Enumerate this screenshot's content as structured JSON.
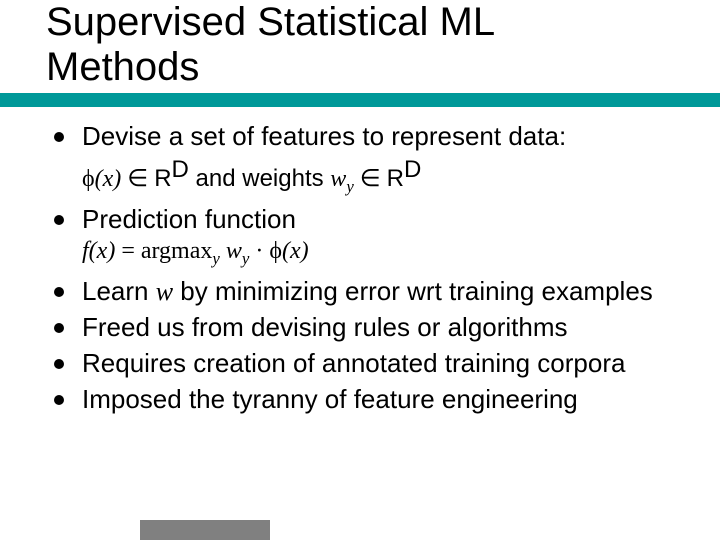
{
  "slide": {
    "title_line1": "Supervised Statistical ML",
    "title_line2": "Methods",
    "colors": {
      "accent_bar": "#009999",
      "text": "#000000",
      "footer_bar": "#808080",
      "background": "#ffffff"
    },
    "title_fontsize": 40,
    "body_fontsize": 26,
    "sub_fontsize": 24,
    "bullets": [
      {
        "text": "Devise a set of features to represent data:",
        "sub": {
          "phi": "ϕ",
          "x": "(x)",
          "in": " ∈ ",
          "R": "R",
          "D": "D",
          "mid": " and weights ",
          "w": "w",
          "y": "y",
          "in2": " ∈ ",
          "R2": "R",
          "D2": "D"
        }
      },
      {
        "text": "Prediction function",
        "sub": {
          "fx": "f(x)",
          "eq": " = argmax",
          "y": "y",
          "sp": " ",
          "w": "w",
          "y2": "y",
          "dot": " · ",
          "phi": "ϕ",
          "x": "(x)"
        }
      },
      {
        "text_a": "Learn ",
        "text_w": "w",
        "text_b": " by minimizing error wrt training examples"
      },
      {
        "text": "Freed us from devising rules or algorithms"
      },
      {
        "text": "Requires creation of annotated training corpora"
      },
      {
        "text": "Imposed the tyranny of feature engineering"
      }
    ]
  }
}
